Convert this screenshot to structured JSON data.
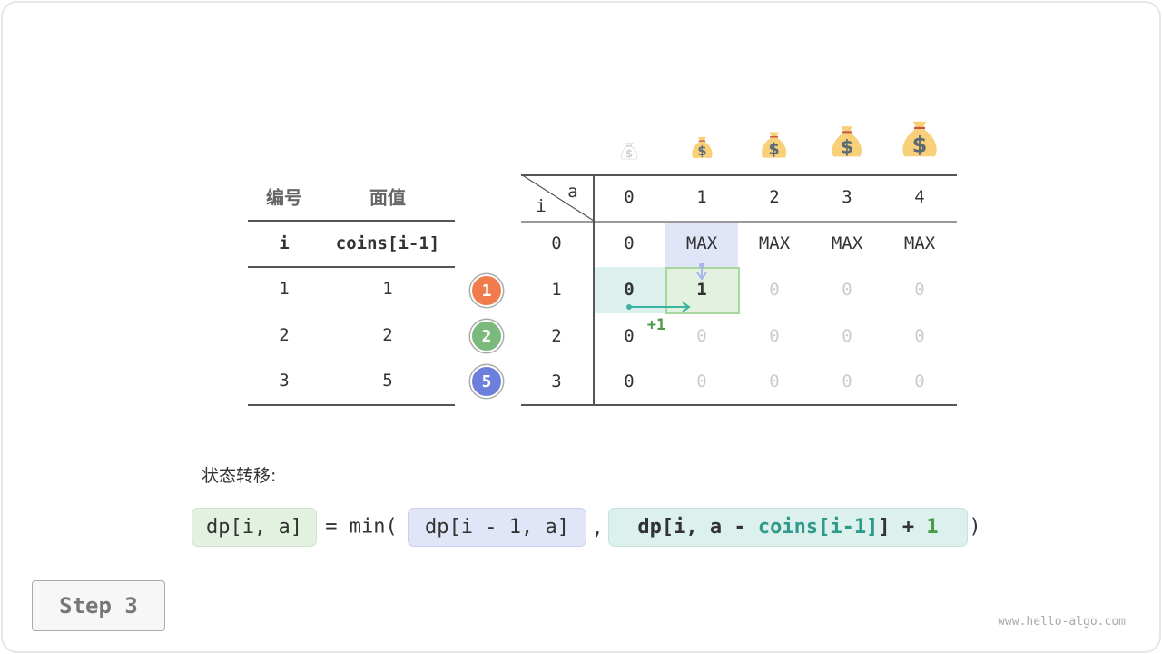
{
  "coin_table": {
    "headers": [
      "编号",
      "面值"
    ],
    "subheaders": [
      "i",
      "coins[i-1]"
    ],
    "rows": [
      [
        "1",
        "1"
      ],
      [
        "2",
        "2"
      ],
      [
        "3",
        "5"
      ]
    ]
  },
  "coin_badges": [
    {
      "label": "1",
      "color": "#f07c4d"
    },
    {
      "label": "2",
      "color": "#7cb97c"
    },
    {
      "label": "5",
      "color": "#6c7fdd"
    }
  ],
  "dp_table": {
    "corner_col": "a",
    "corner_row": "i",
    "col_headers": [
      "0",
      "1",
      "2",
      "3",
      "4"
    ],
    "row_headers": [
      "0",
      "1",
      "2",
      "3"
    ],
    "rows": [
      [
        "0",
        "MAX",
        "MAX",
        "MAX",
        "MAX"
      ],
      [
        "0",
        "1",
        "0",
        "0",
        "0"
      ],
      [
        "0",
        "0",
        "0",
        "0",
        "0"
      ],
      [
        "0",
        "0",
        "0",
        "0",
        "0"
      ]
    ],
    "active_row": 1,
    "active_col": 1,
    "increment_label": "+1",
    "icons": [
      "money-bag",
      "money-bag",
      "money-bag",
      "money-bag",
      "money-bag"
    ]
  },
  "formula": {
    "label": "状态转移:",
    "lhs": "dp[i, a]",
    "eq": "= min(",
    "arg1": "dp[i - 1, a]",
    "comma": ",",
    "arg2_a": "dp[i, a - ",
    "arg2_b": "coins[i-1]",
    "arg2_c": "] + ",
    "arg2_d": "1",
    "close": ")"
  },
  "step_button": "Step 3",
  "watermark": "www.hello-algo.com",
  "colors": {
    "blue": "#e1e5f8",
    "teal": "#dcf0ee",
    "green": "#e3f1e0",
    "green_border": "#a8d5a0",
    "teal_text": "#2f9a8a",
    "green_text": "#4a9a4a"
  }
}
